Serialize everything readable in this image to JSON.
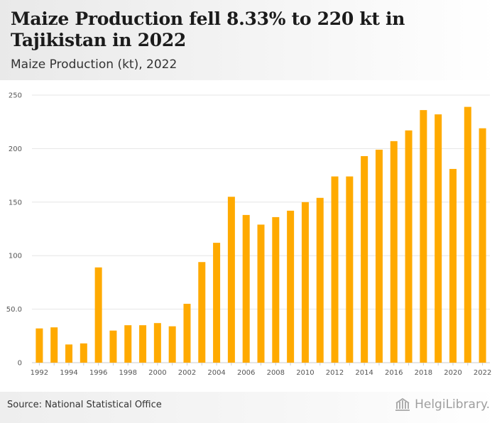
{
  "header": {
    "title": "Maize Production fell 8.33% to 220 kt in Tajikistan in 2022",
    "subtitle": "Maize Production (kt), 2022"
  },
  "footer": {
    "source": "Source: National Statistical Office",
    "logo_text": "HelgiLibrary."
  },
  "colors": {
    "bar": "#ffaa00",
    "grid": "#e6e6e6",
    "axis": "#cccccc"
  },
  "chart_data": {
    "type": "bar",
    "title": "Maize Production (kt), 2022",
    "xlabel": "",
    "ylabel": "",
    "ylim": [
      0,
      250
    ],
    "y_ticks": [
      0,
      50,
      100,
      150,
      200,
      250
    ],
    "y_tick_labels": [
      "0",
      "50.0",
      "100",
      "150",
      "200",
      "250"
    ],
    "categories": [
      "1992",
      "1993",
      "1994",
      "1995",
      "1996",
      "1997",
      "1998",
      "1999",
      "2000",
      "2001",
      "2002",
      "2003",
      "2004",
      "2005",
      "2006",
      "2007",
      "2008",
      "2009",
      "2010",
      "2011",
      "2012",
      "2013",
      "2014",
      "2015",
      "2016",
      "2017",
      "2018",
      "2019",
      "2020",
      "2021",
      "2022"
    ],
    "x_tick_labels": [
      "1992",
      "1994",
      "1996",
      "1998",
      "2000",
      "2002",
      "2004",
      "2006",
      "2008",
      "2010",
      "2012",
      "2014",
      "2016",
      "2018",
      "2020",
      "2022"
    ],
    "values": [
      32,
      33,
      17,
      18,
      89,
      30,
      35,
      35,
      37,
      34,
      55,
      94,
      112,
      155,
      138,
      129,
      136,
      142,
      150,
      154,
      174,
      174,
      193,
      199,
      207,
      217,
      236,
      232,
      181,
      239,
      219
    ],
    "grid": true,
    "legend": "none"
  }
}
